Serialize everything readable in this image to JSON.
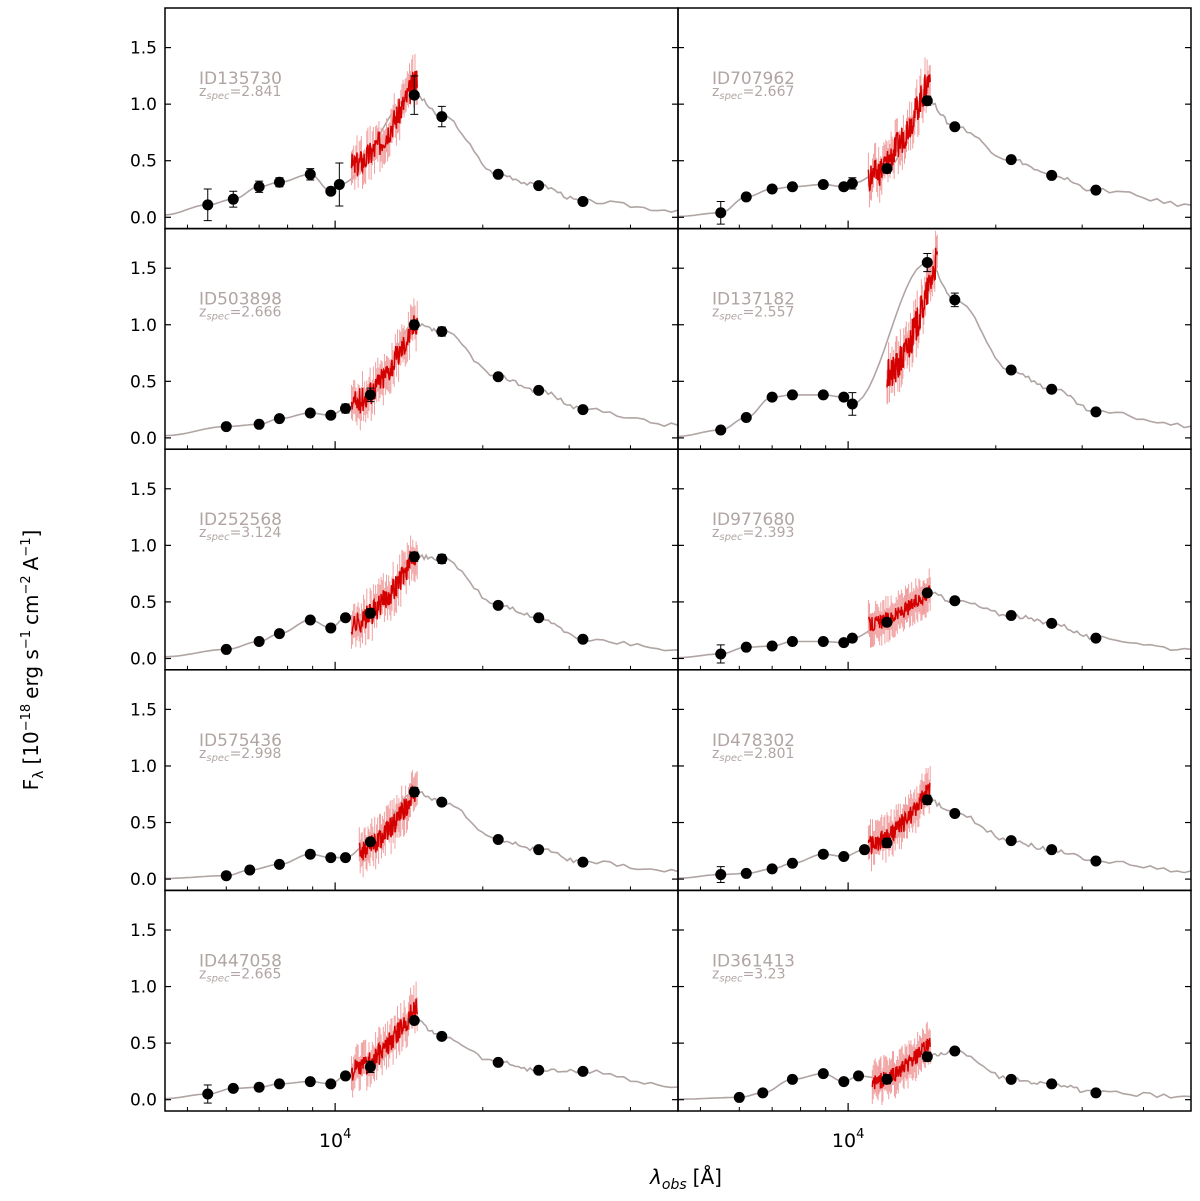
{
  "figure": {
    "ylabel": "F",
    "ylabel_sub": "λ",
    "ylabel_units": "[10",
    "ylabel_exp1": "−18",
    "ylabel_mid": "erg s",
    "ylabel_exp2": "−1",
    "ylabel_mid2": "cm",
    "ylabel_exp3": "−2",
    "ylabel_mid3": "A",
    "ylabel_exp4": "−1",
    "ylabel_end": "]",
    "xlabel_main": "λ",
    "xlabel_sub": "obs",
    "xlabel_units": "[Å]",
    "colors": {
      "model": "#b0a5a3",
      "spectrum": "#d40000",
      "spectrum_err": "#f0a0a0",
      "phot": "#000000",
      "label": "#b0a5a3"
    }
  },
  "chart_data": [
    {
      "type": "scatter",
      "id": "ID135730",
      "zspec": "=2.841",
      "xlim": [
        4500,
        50000
      ],
      "ylim": [
        -0.1,
        1.85
      ],
      "xscale": "log",
      "x": [
        5500,
        6200,
        7000,
        7700,
        8900,
        9800,
        10200,
        14500,
        16500,
        21500,
        26000,
        32000
      ],
      "y": [
        0.11,
        0.16,
        0.27,
        0.31,
        0.38,
        0.23,
        0.29,
        1.08,
        0.89,
        0.38,
        0.28,
        0.14
      ],
      "yerr": [
        0.14,
        0.07,
        0.05,
        0.04,
        0.05,
        0.03,
        0.19,
        0.17,
        0.09,
        0.02,
        0.02,
        0.01
      ],
      "spectrum": {
        "range": [
          10800,
          14700
        ],
        "level": [
          0.45,
          1.25
        ]
      }
    },
    {
      "type": "scatter",
      "id": "ID707962",
      "zspec": "=2.667",
      "xlim": [
        4500,
        50000
      ],
      "ylim": [
        -0.1,
        1.85
      ],
      "xscale": "log",
      "x": [
        5500,
        6200,
        7000,
        7700,
        8900,
        9800,
        10200,
        12000,
        14500,
        16500,
        21500,
        26000,
        32000
      ],
      "y": [
        0.04,
        0.18,
        0.25,
        0.27,
        0.29,
        0.27,
        0.3,
        0.43,
        1.03,
        0.8,
        0.51,
        0.37,
        0.24
      ],
      "yerr": [
        0.1,
        0.03,
        0.02,
        0.02,
        0.02,
        0.03,
        0.05,
        0.04,
        0.04,
        0.02,
        0.02,
        0.02,
        0.01
      ],
      "spectrum": {
        "range": [
          11000,
          14700
        ],
        "level": [
          0.35,
          1.25
        ]
      }
    },
    {
      "type": "scatter",
      "id": "ID503898",
      "zspec": "=2.666",
      "xlim": [
        4500,
        50000
      ],
      "ylim": [
        -0.1,
        1.85
      ],
      "xscale": "log",
      "x": [
        6000,
        7000,
        7700,
        8900,
        9800,
        10500,
        11800,
        14500,
        16500,
        21500,
        26000,
        32000
      ],
      "y": [
        0.1,
        0.12,
        0.17,
        0.22,
        0.2,
        0.26,
        0.38,
        1.0,
        0.94,
        0.54,
        0.42,
        0.25
      ],
      "yerr": [
        0.02,
        0.02,
        0.02,
        0.02,
        0.02,
        0.04,
        0.06,
        0.04,
        0.04,
        0.02,
        0.02,
        0.02
      ],
      "spectrum": {
        "range": [
          10800,
          14700
        ],
        "level": [
          0.3,
          1.05
        ]
      }
    },
    {
      "type": "scatter",
      "id": "ID137182",
      "zspec": "=2.557",
      "xlim": [
        4500,
        50000
      ],
      "ylim": [
        -0.1,
        1.85
      ],
      "xscale": "log",
      "x": [
        5500,
        6200,
        7000,
        7700,
        8900,
        9800,
        10200,
        14500,
        16500,
        21500,
        26000,
        32000
      ],
      "y": [
        0.07,
        0.18,
        0.36,
        0.38,
        0.38,
        0.36,
        0.3,
        1.55,
        1.22,
        0.6,
        0.43,
        0.23
      ],
      "yerr": [
        0.02,
        0.02,
        0.03,
        0.02,
        0.02,
        0.03,
        0.1,
        0.08,
        0.06,
        0.02,
        0.02,
        0.02
      ],
      "spectrum": {
        "range": [
          12000,
          15200
        ],
        "level": [
          0.55,
          1.6
        ]
      }
    },
    {
      "type": "scatter",
      "id": "ID252568",
      "zspec": "=3.124",
      "xlim": [
        4500,
        50000
      ],
      "ylim": [
        -0.1,
        1.85
      ],
      "xscale": "log",
      "x": [
        6000,
        7000,
        7700,
        8900,
        9800,
        10500,
        11800,
        14500,
        16500,
        21500,
        26000,
        32000
      ],
      "y": [
        0.08,
        0.15,
        0.22,
        0.34,
        0.27,
        0.36,
        0.4,
        0.9,
        0.88,
        0.47,
        0.36,
        0.17
      ],
      "yerr": [
        0.02,
        0.02,
        0.02,
        0.02,
        0.02,
        0.02,
        0.04,
        0.04,
        0.04,
        0.02,
        0.02,
        0.02
      ],
      "spectrum": {
        "range": [
          10800,
          14700
        ],
        "level": [
          0.3,
          0.95
        ]
      }
    },
    {
      "type": "scatter",
      "id": "ID977680",
      "zspec": "=2.393",
      "xlim": [
        4500,
        50000
      ],
      "ylim": [
        -0.1,
        1.85
      ],
      "xscale": "log",
      "x": [
        5500,
        6200,
        7000,
        7700,
        8900,
        9800,
        10200,
        12000,
        14500,
        16500,
        21500,
        26000,
        32000
      ],
      "y": [
        0.04,
        0.1,
        0.11,
        0.15,
        0.15,
        0.14,
        0.18,
        0.32,
        0.58,
        0.51,
        0.38,
        0.31,
        0.18
      ],
      "yerr": [
        0.08,
        0.02,
        0.02,
        0.02,
        0.02,
        0.02,
        0.02,
        0.03,
        0.03,
        0.02,
        0.02,
        0.02,
        0.02
      ],
      "spectrum": {
        "range": [
          11000,
          14700
        ],
        "level": [
          0.3,
          0.6
        ]
      }
    },
    {
      "type": "scatter",
      "id": "ID575436",
      "zspec": "=2.998",
      "xlim": [
        4500,
        50000
      ],
      "ylim": [
        -0.1,
        1.85
      ],
      "xscale": "log",
      "x": [
        6000,
        6700,
        7700,
        8900,
        9800,
        10500,
        11800,
        14500,
        16500,
        21500,
        26000,
        32000
      ],
      "y": [
        0.03,
        0.08,
        0.13,
        0.22,
        0.19,
        0.19,
        0.33,
        0.77,
        0.68,
        0.35,
        0.26,
        0.15
      ],
      "yerr": [
        0.01,
        0.01,
        0.01,
        0.02,
        0.02,
        0.02,
        0.02,
        0.04,
        0.02,
        0.02,
        0.02,
        0.02
      ],
      "spectrum": {
        "range": [
          11200,
          14700
        ],
        "level": [
          0.25,
          0.8
        ]
      }
    },
    {
      "type": "scatter",
      "id": "ID478302",
      "zspec": "=2.801",
      "xlim": [
        4500,
        50000
      ],
      "ylim": [
        -0.1,
        1.85
      ],
      "xscale": "log",
      "x": [
        5500,
        6200,
        7000,
        7700,
        8900,
        9800,
        10800,
        12000,
        14500,
        16500,
        21500,
        26000,
        32000
      ],
      "y": [
        0.04,
        0.05,
        0.09,
        0.14,
        0.22,
        0.2,
        0.26,
        0.32,
        0.7,
        0.58,
        0.34,
        0.26,
        0.16
      ],
      "yerr": [
        0.07,
        0.02,
        0.02,
        0.02,
        0.02,
        0.02,
        0.03,
        0.04,
        0.04,
        0.02,
        0.02,
        0.02,
        0.02
      ],
      "spectrum": {
        "range": [
          11000,
          14700
        ],
        "level": [
          0.3,
          0.8
        ]
      }
    },
    {
      "type": "scatter",
      "id": "ID447058",
      "zspec": "=2.665",
      "xlim": [
        4500,
        50000
      ],
      "ylim": [
        -0.1,
        1.85
      ],
      "xscale": "log",
      "x": [
        5500,
        6200,
        7000,
        7700,
        8900,
        9800,
        10500,
        11800,
        14500,
        16500,
        21500,
        26000,
        32000
      ],
      "y": [
        0.05,
        0.1,
        0.11,
        0.14,
        0.16,
        0.14,
        0.21,
        0.29,
        0.7,
        0.56,
        0.33,
        0.26,
        0.25
      ],
      "yerr": [
        0.08,
        0.02,
        0.02,
        0.02,
        0.02,
        0.02,
        0.02,
        0.05,
        0.03,
        0.02,
        0.02,
        0.02,
        0.02
      ],
      "spectrum": {
        "range": [
          10800,
          14700
        ],
        "level": [
          0.25,
          0.85
        ]
      }
    },
    {
      "type": "scatter",
      "id": "ID361413",
      "zspec": "=3.23",
      "xlim": [
        4500,
        50000
      ],
      "ylim": [
        -0.1,
        1.85
      ],
      "xscale": "log",
      "x": [
        6000,
        6700,
        7700,
        8900,
        9800,
        10500,
        12000,
        14500,
        16500,
        21500,
        26000,
        32000
      ],
      "y": [
        0.02,
        0.06,
        0.18,
        0.23,
        0.16,
        0.21,
        0.18,
        0.38,
        0.43,
        0.18,
        0.14,
        0.06
      ],
      "yerr": [
        0.01,
        0.01,
        0.02,
        0.02,
        0.02,
        0.02,
        0.04,
        0.04,
        0.02,
        0.02,
        0.02,
        0.02
      ],
      "spectrum": {
        "range": [
          11200,
          14700
        ],
        "level": [
          0.15,
          0.5
        ]
      }
    }
  ],
  "axes": {
    "yticks": [
      "0.0",
      "0.5",
      "1.0",
      "1.5"
    ],
    "ytick_values": [
      0.0,
      0.5,
      1.0,
      1.5
    ],
    "xtick_base": "10",
    "xtick_exp": "4",
    "xtick_value": 10000
  }
}
